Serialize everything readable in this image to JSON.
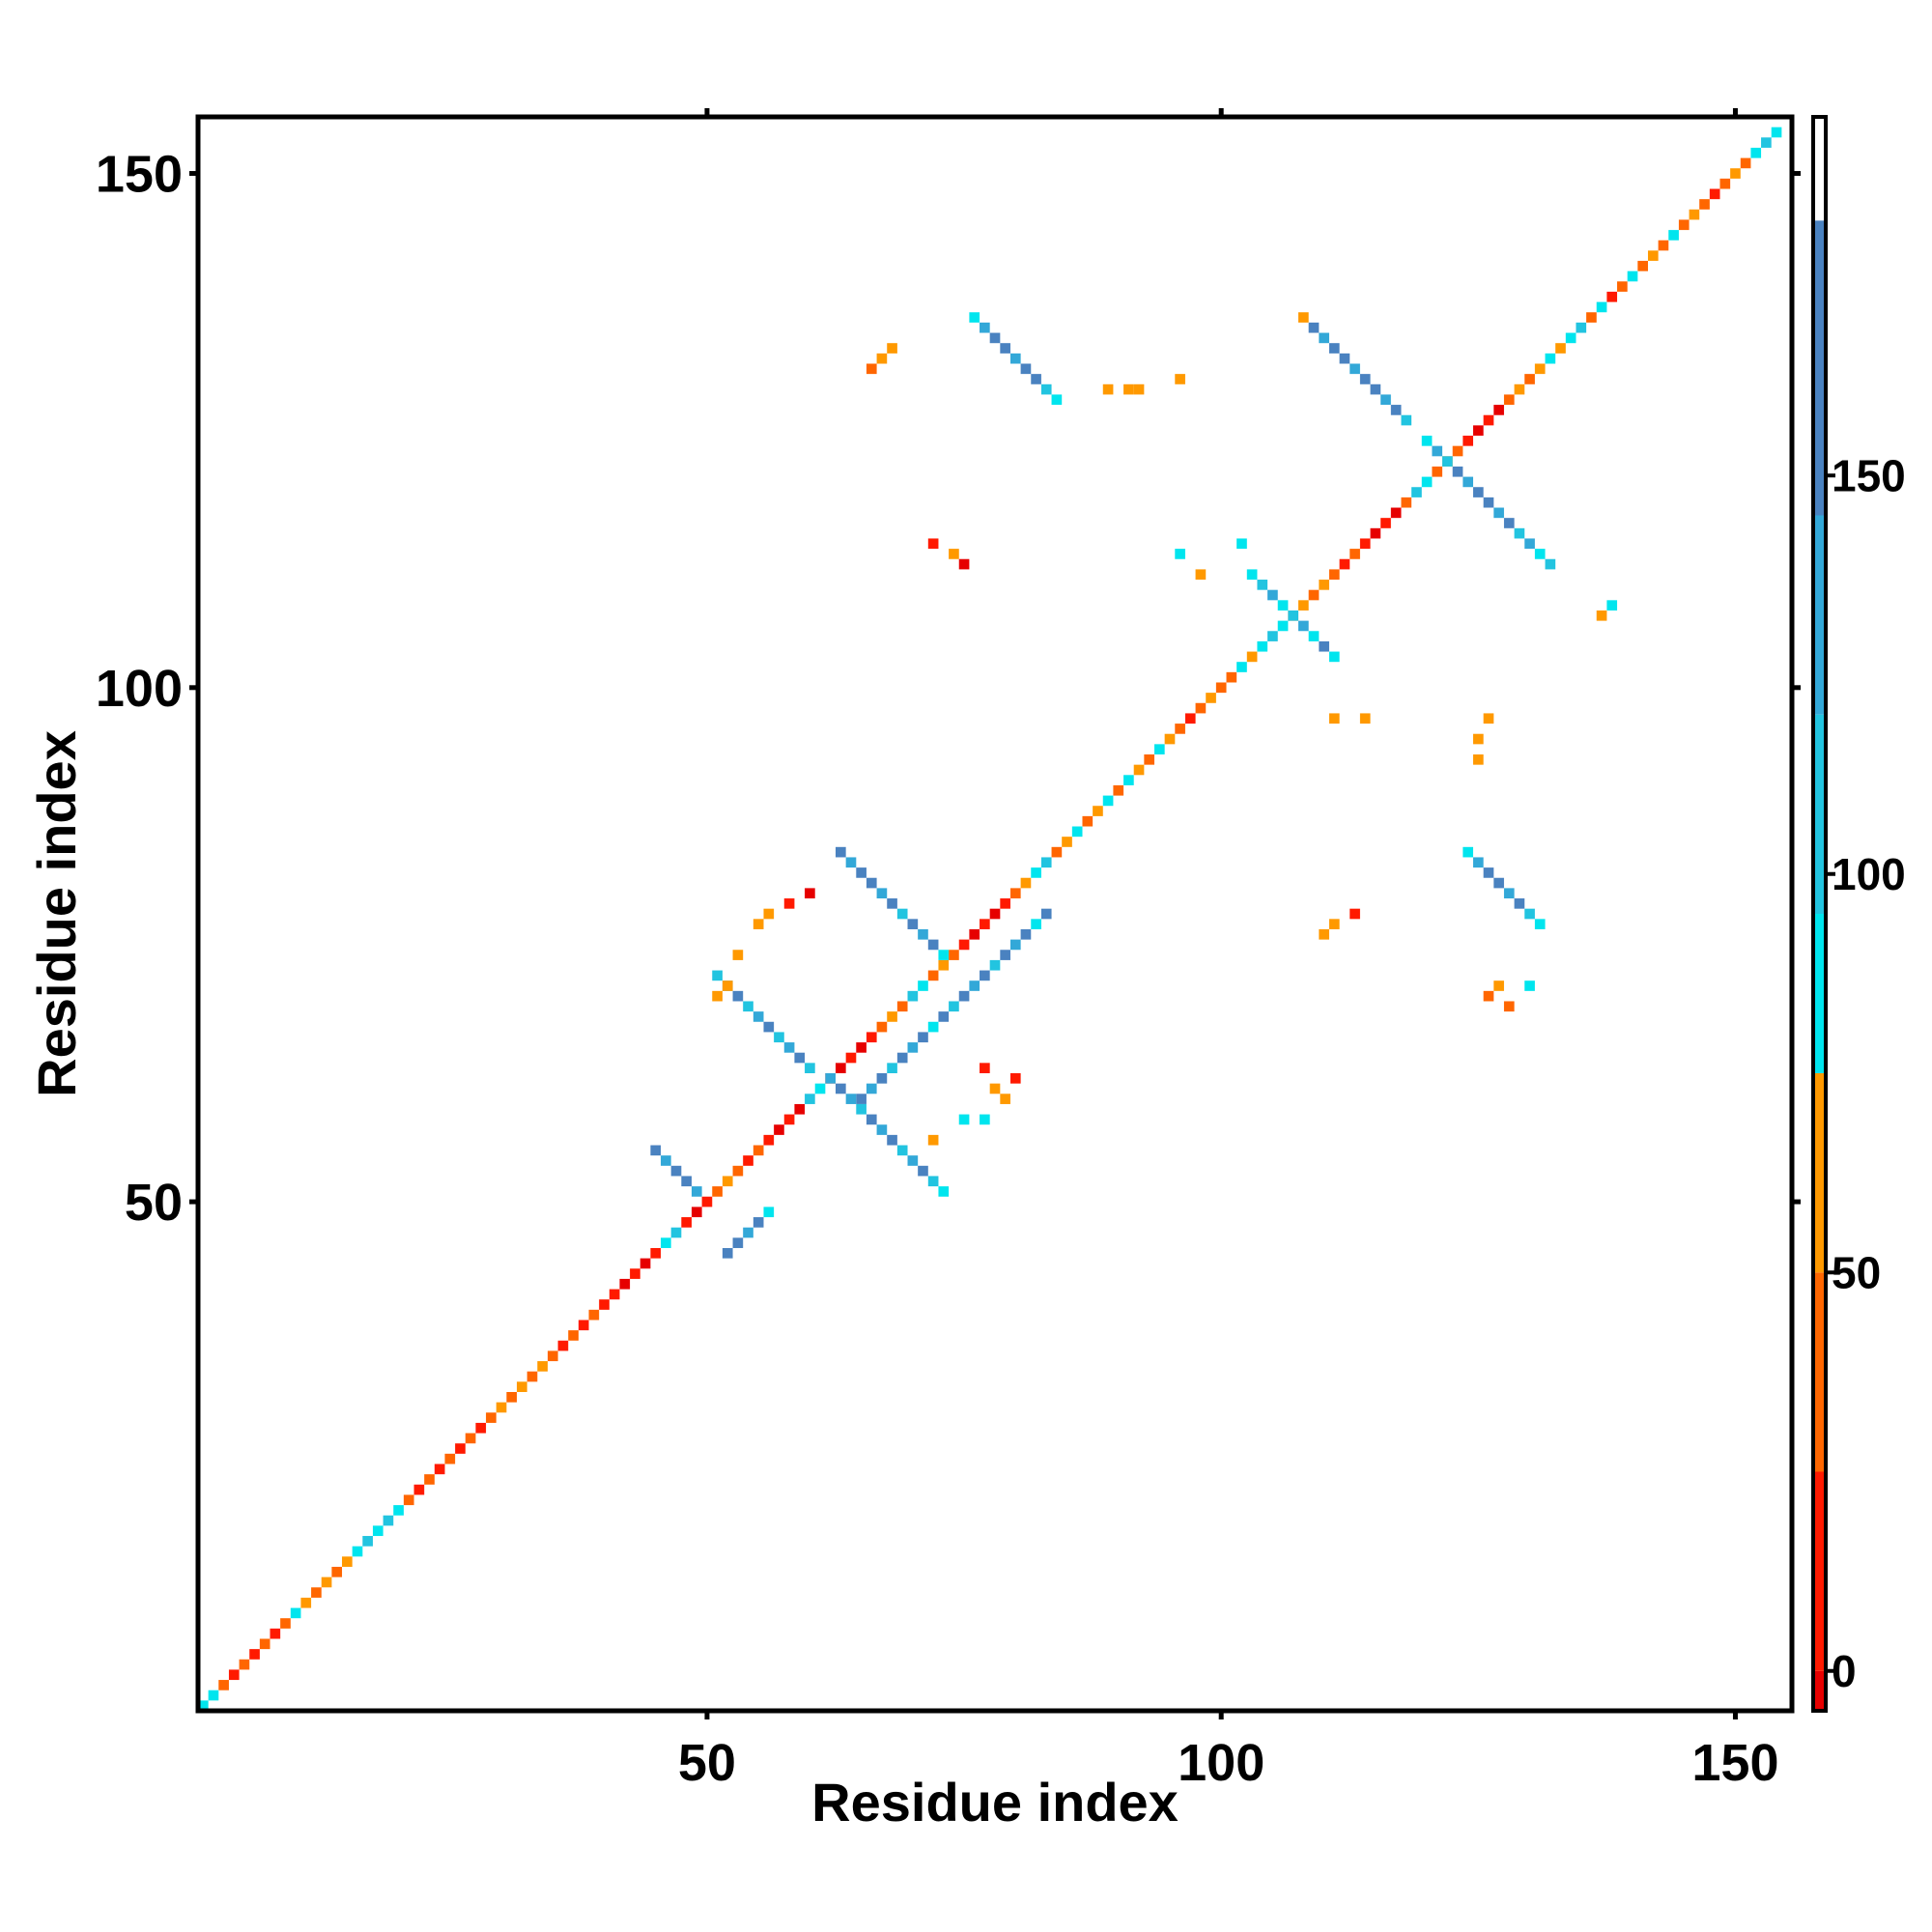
{
  "chart_data": {
    "type": "heatmap",
    "title": "",
    "xlabel": "Residue index",
    "ylabel": "Residue index",
    "xlim": [
      1,
      155
    ],
    "ylim": [
      1,
      155
    ],
    "x_ticks": [
      50,
      100,
      150
    ],
    "y_ticks": [
      50,
      100,
      150
    ],
    "colorbar": {
      "ticks": [
        0,
        50,
        100,
        150
      ],
      "range": [
        -5,
        195
      ],
      "bands": [
        {
          "from": -5,
          "to": 0,
          "color": "#e60000"
        },
        {
          "from": 0,
          "to": 25,
          "color": "#ff1a00"
        },
        {
          "from": 25,
          "to": 50,
          "color": "#ff6600"
        },
        {
          "from": 50,
          "to": 75,
          "color": "#ff9900"
        },
        {
          "from": 75,
          "to": 95,
          "color": "#00e5ee"
        },
        {
          "from": 95,
          "to": 120,
          "color": "#22c4e0"
        },
        {
          "from": 120,
          "to": 145,
          "color": "#33a8d8"
        },
        {
          "from": 145,
          "to": 182,
          "color": "#4a82c0"
        },
        {
          "from": 182,
          "to": 195,
          "color": "#ffffff"
        }
      ]
    },
    "cells": [
      [
        1,
        1,
        "#00e5ee"
      ],
      [
        2,
        2,
        "#00e5ee"
      ],
      [
        3,
        3,
        "#ff6600"
      ],
      [
        4,
        4,
        "#ff1a00"
      ],
      [
        5,
        5,
        "#ff6600"
      ],
      [
        6,
        6,
        "#ff1a00"
      ],
      [
        7,
        7,
        "#ff6600"
      ],
      [
        8,
        8,
        "#ff1a00"
      ],
      [
        9,
        9,
        "#ff6600"
      ],
      [
        10,
        10,
        "#00e5ee"
      ],
      [
        11,
        11,
        "#ff9900"
      ],
      [
        12,
        12,
        "#ff6600"
      ],
      [
        13,
        13,
        "#ff9900"
      ],
      [
        14,
        14,
        "#ff6600"
      ],
      [
        15,
        15,
        "#ff9900"
      ],
      [
        16,
        16,
        "#00e5ee"
      ],
      [
        17,
        17,
        "#22c4e0"
      ],
      [
        18,
        18,
        "#00e5ee"
      ],
      [
        19,
        19,
        "#22c4e0"
      ],
      [
        20,
        20,
        "#00e5ee"
      ],
      [
        21,
        21,
        "#ff6600"
      ],
      [
        22,
        22,
        "#ff1a00"
      ],
      [
        23,
        23,
        "#ff6600"
      ],
      [
        24,
        24,
        "#ff1a00"
      ],
      [
        25,
        25,
        "#ff6600"
      ],
      [
        26,
        26,
        "#ff1a00"
      ],
      [
        27,
        27,
        "#ff6600"
      ],
      [
        28,
        28,
        "#ff1a00"
      ],
      [
        29,
        29,
        "#ff6600"
      ],
      [
        30,
        30,
        "#ff9900"
      ],
      [
        31,
        31,
        "#ff6600"
      ],
      [
        32,
        32,
        "#ff9900"
      ],
      [
        33,
        33,
        "#ff6600"
      ],
      [
        34,
        34,
        "#ff9900"
      ],
      [
        35,
        35,
        "#ff6600"
      ],
      [
        36,
        36,
        "#ff1a00"
      ],
      [
        37,
        37,
        "#ff6600"
      ],
      [
        38,
        38,
        "#ff1a00"
      ],
      [
        39,
        39,
        "#ff6600"
      ],
      [
        40,
        40,
        "#ff1a00"
      ],
      [
        41,
        41,
        "#ff1a00"
      ],
      [
        42,
        42,
        "#e60000"
      ],
      [
        43,
        43,
        "#ff1a00"
      ],
      [
        44,
        44,
        "#e60000"
      ],
      [
        45,
        45,
        "#ff1a00"
      ],
      [
        46,
        46,
        "#00e5ee"
      ],
      [
        47,
        47,
        "#22c4e0"
      ],
      [
        48,
        48,
        "#ff1a00"
      ],
      [
        49,
        49,
        "#e60000"
      ],
      [
        50,
        50,
        "#ff1a00"
      ],
      [
        51,
        51,
        "#ff6600"
      ],
      [
        52,
        52,
        "#ff9900"
      ],
      [
        53,
        53,
        "#ff6600"
      ],
      [
        54,
        54,
        "#ff1a00"
      ],
      [
        55,
        55,
        "#ff6600"
      ],
      [
        56,
        56,
        "#ff1a00"
      ],
      [
        57,
        57,
        "#e60000"
      ],
      [
        58,
        58,
        "#ff1a00"
      ],
      [
        59,
        59,
        "#e60000"
      ],
      [
        60,
        60,
        "#22c4e0"
      ],
      [
        61,
        61,
        "#00e5ee"
      ],
      [
        62,
        62,
        "#ff1a00"
      ],
      [
        63,
        63,
        "#e60000"
      ],
      [
        64,
        64,
        "#ff1a00"
      ],
      [
        65,
        65,
        "#e60000"
      ],
      [
        66,
        66,
        "#ff1a00"
      ],
      [
        67,
        67,
        "#ff6600"
      ],
      [
        68,
        68,
        "#ff9900"
      ],
      [
        69,
        69,
        "#ff6600"
      ],
      [
        70,
        70,
        "#22c4e0"
      ],
      [
        71,
        71,
        "#00e5ee"
      ],
      [
        72,
        72,
        "#ff6600"
      ],
      [
        73,
        73,
        "#ff9900"
      ],
      [
        74,
        74,
        "#ff6600"
      ],
      [
        75,
        75,
        "#ff1a00"
      ],
      [
        76,
        76,
        "#e60000"
      ],
      [
        77,
        77,
        "#ff1a00"
      ],
      [
        78,
        78,
        "#e60000"
      ],
      [
        79,
        79,
        "#ff1a00"
      ],
      [
        80,
        80,
        "#ff6600"
      ],
      [
        81,
        81,
        "#ff9900"
      ],
      [
        82,
        82,
        "#00e5ee"
      ],
      [
        83,
        83,
        "#22c4e0"
      ],
      [
        84,
        84,
        "#ff6600"
      ],
      [
        85,
        85,
        "#ff9900"
      ],
      [
        86,
        86,
        "#00e5ee"
      ],
      [
        87,
        87,
        "#ff6600"
      ],
      [
        88,
        88,
        "#ff9900"
      ],
      [
        89,
        89,
        "#00e5ee"
      ],
      [
        90,
        90,
        "#ff6600"
      ],
      [
        91,
        91,
        "#00e5ee"
      ],
      [
        92,
        92,
        "#ff9900"
      ],
      [
        93,
        93,
        "#ff6600"
      ],
      [
        94,
        94,
        "#00e5ee"
      ],
      [
        95,
        95,
        "#ff9900"
      ],
      [
        96,
        96,
        "#ff6600"
      ],
      [
        97,
        97,
        "#ff1a00"
      ],
      [
        98,
        98,
        "#ff6600"
      ],
      [
        99,
        99,
        "#ff9900"
      ],
      [
        100,
        100,
        "#ff6600"
      ],
      [
        101,
        101,
        "#ff6600"
      ],
      [
        102,
        102,
        "#00e5ee"
      ],
      [
        103,
        103,
        "#ff9900"
      ],
      [
        104,
        104,
        "#00e5ee"
      ],
      [
        105,
        105,
        "#22c4e0"
      ],
      [
        106,
        106,
        "#00e5ee"
      ],
      [
        107,
        107,
        "#ff6600"
      ],
      [
        108,
        108,
        "#ff9900"
      ],
      [
        109,
        109,
        "#ff6600"
      ],
      [
        110,
        110,
        "#ff9900"
      ],
      [
        111,
        111,
        "#ff6600"
      ],
      [
        112,
        112,
        "#ff1a00"
      ],
      [
        113,
        113,
        "#ff6600"
      ],
      [
        114,
        114,
        "#ff1a00"
      ],
      [
        115,
        115,
        "#e60000"
      ],
      [
        116,
        116,
        "#ff1a00"
      ],
      [
        117,
        117,
        "#e60000"
      ],
      [
        118,
        118,
        "#ff6600"
      ],
      [
        119,
        119,
        "#22c4e0"
      ],
      [
        120,
        120,
        "#00e5ee"
      ],
      [
        121,
        121,
        "#ff6600"
      ],
      [
        122,
        122,
        "#ff9900"
      ],
      [
        123,
        123,
        "#ff6600"
      ],
      [
        124,
        124,
        "#ff1a00"
      ],
      [
        125,
        125,
        "#e60000"
      ],
      [
        126,
        126,
        "#ff1a00"
      ],
      [
        127,
        127,
        "#e60000"
      ],
      [
        128,
        128,
        "#ff6600"
      ],
      [
        129,
        129,
        "#ff9900"
      ],
      [
        130,
        130,
        "#ff6600"
      ],
      [
        131,
        131,
        "#ff9900"
      ],
      [
        132,
        132,
        "#00e5ee"
      ],
      [
        133,
        133,
        "#ff9900"
      ],
      [
        134,
        134,
        "#00e5ee"
      ],
      [
        135,
        135,
        "#22c4e0"
      ],
      [
        136,
        136,
        "#ff6600"
      ],
      [
        137,
        137,
        "#00e5ee"
      ],
      [
        138,
        138,
        "#ff1a00"
      ],
      [
        139,
        139,
        "#ff6600"
      ],
      [
        140,
        140,
        "#00e5ee"
      ],
      [
        141,
        141,
        "#ff6600"
      ],
      [
        142,
        142,
        "#ff9900"
      ],
      [
        143,
        143,
        "#ff6600"
      ],
      [
        144,
        144,
        "#00e5ee"
      ],
      [
        145,
        145,
        "#ff6600"
      ],
      [
        146,
        146,
        "#ff9900"
      ],
      [
        147,
        147,
        "#ff6600"
      ],
      [
        148,
        148,
        "#ff1a00"
      ],
      [
        149,
        149,
        "#ff6600"
      ],
      [
        150,
        150,
        "#ff9900"
      ],
      [
        151,
        151,
        "#ff6600"
      ],
      [
        152,
        152,
        "#00e5ee"
      ],
      [
        153,
        153,
        "#22c4e0"
      ],
      [
        154,
        154,
        "#00e5ee"
      ],
      [
        52,
        45,
        "#4a82c0"
      ],
      [
        53,
        46,
        "#4a82c0"
      ],
      [
        54,
        47,
        "#33a8d8"
      ],
      [
        55,
        48,
        "#4a82c0"
      ],
      [
        56,
        49,
        "#00e5ee"
      ],
      [
        49,
        51,
        "#33a8d8"
      ],
      [
        48,
        52,
        "#4a82c0"
      ],
      [
        47,
        53,
        "#4a82c0"
      ],
      [
        46,
        54,
        "#33a8d8"
      ],
      [
        45,
        55,
        "#4a82c0"
      ],
      [
        65,
        60,
        "#4a82c0"
      ],
      [
        66,
        61,
        "#33a8d8"
      ],
      [
        67,
        62,
        "#4a82c0"
      ],
      [
        68,
        63,
        "#22c4e0"
      ],
      [
        69,
        64,
        "#4a82c0"
      ],
      [
        70,
        65,
        "#33a8d8"
      ],
      [
        71,
        66,
        "#4a82c0"
      ],
      [
        72,
        67,
        "#00e5ee"
      ],
      [
        73,
        68,
        "#4a82c0"
      ],
      [
        74,
        69,
        "#22c4e0"
      ],
      [
        75,
        70,
        "#4a82c0"
      ],
      [
        76,
        71,
        "#33a8d8"
      ],
      [
        77,
        72,
        "#4a82c0"
      ],
      [
        78,
        73,
        "#22c4e0"
      ],
      [
        79,
        74,
        "#4a82c0"
      ],
      [
        80,
        75,
        "#33a8d8"
      ],
      [
        81,
        76,
        "#4a82c0"
      ],
      [
        82,
        77,
        "#00e5ee"
      ],
      [
        83,
        78,
        "#4a82c0"
      ],
      [
        51,
        72,
        "#22c4e0"
      ],
      [
        52,
        71,
        "#33a8d8"
      ],
      [
        53,
        70,
        "#4a82c0"
      ],
      [
        54,
        69,
        "#22c4e0"
      ],
      [
        55,
        68,
        "#33a8d8"
      ],
      [
        56,
        67,
        "#4a82c0"
      ],
      [
        57,
        66,
        "#22c4e0"
      ],
      [
        58,
        65,
        "#33a8d8"
      ],
      [
        59,
        64,
        "#4a82c0"
      ],
      [
        60,
        63,
        "#22c4e0"
      ],
      [
        62,
        62,
        "#33a8d8"
      ],
      [
        63,
        61,
        "#4a82c0"
      ],
      [
        64,
        60,
        "#33a8d8"
      ],
      [
        65,
        59,
        "#22c4e0"
      ],
      [
        66,
        58,
        "#4a82c0"
      ],
      [
        67,
        57,
        "#33a8d8"
      ],
      [
        68,
        56,
        "#4a82c0"
      ],
      [
        69,
        55,
        "#22c4e0"
      ],
      [
        70,
        54,
        "#33a8d8"
      ],
      [
        71,
        53,
        "#4a82c0"
      ],
      [
        72,
        52,
        "#22c4e0"
      ],
      [
        73,
        51,
        "#00e5ee"
      ],
      [
        63,
        84,
        "#4a82c0"
      ],
      [
        64,
        83,
        "#33a8d8"
      ],
      [
        65,
        82,
        "#4a82c0"
      ],
      [
        66,
        81,
        "#4a82c0"
      ],
      [
        67,
        80,
        "#33a8d8"
      ],
      [
        68,
        79,
        "#4a82c0"
      ],
      [
        69,
        78,
        "#22c4e0"
      ],
      [
        70,
        77,
        "#4a82c0"
      ],
      [
        71,
        76,
        "#33a8d8"
      ],
      [
        72,
        75,
        "#4a82c0"
      ],
      [
        73,
        74,
        "#00e5ee"
      ],
      [
        76,
        136,
        "#00e5ee"
      ],
      [
        77,
        135,
        "#33a8d8"
      ],
      [
        78,
        134,
        "#4a82c0"
      ],
      [
        79,
        133,
        "#4a82c0"
      ],
      [
        80,
        132,
        "#33a8d8"
      ],
      [
        81,
        131,
        "#4a82c0"
      ],
      [
        82,
        130,
        "#4a82c0"
      ],
      [
        83,
        129,
        "#22c4e0"
      ],
      [
        84,
        128,
        "#00e5ee"
      ],
      [
        109,
        135,
        "#4a82c0"
      ],
      [
        110,
        134,
        "#33a8d8"
      ],
      [
        111,
        133,
        "#4a82c0"
      ],
      [
        112,
        132,
        "#4a82c0"
      ],
      [
        113,
        131,
        "#33a8d8"
      ],
      [
        114,
        130,
        "#4a82c0"
      ],
      [
        115,
        129,
        "#4a82c0"
      ],
      [
        116,
        128,
        "#33a8d8"
      ],
      [
        117,
        127,
        "#4a82c0"
      ],
      [
        118,
        126,
        "#22c4e0"
      ],
      [
        120,
        124,
        "#00e5ee"
      ],
      [
        121,
        123,
        "#33a8d8"
      ],
      [
        122,
        122,
        "#22c4e0"
      ],
      [
        123,
        121,
        "#4a82c0"
      ],
      [
        124,
        120,
        "#33a8d8"
      ],
      [
        125,
        119,
        "#4a82c0"
      ],
      [
        126,
        118,
        "#4a82c0"
      ],
      [
        127,
        117,
        "#33a8d8"
      ],
      [
        128,
        116,
        "#4a82c0"
      ],
      [
        129,
        115,
        "#22c4e0"
      ],
      [
        130,
        114,
        "#33a8d8"
      ],
      [
        131,
        113,
        "#00e5ee"
      ],
      [
        132,
        112,
        "#22c4e0"
      ],
      [
        103,
        111,
        "#00e5ee"
      ],
      [
        104,
        110,
        "#22c4e0"
      ],
      [
        105,
        109,
        "#33a8d8"
      ],
      [
        106,
        108,
        "#00e5ee"
      ],
      [
        107,
        107,
        "#22c4e0"
      ],
      [
        108,
        106,
        "#33a8d8"
      ],
      [
        109,
        105,
        "#00e5ee"
      ],
      [
        110,
        104,
        "#4a82c0"
      ],
      [
        111,
        103,
        "#00e5ee"
      ],
      [
        124,
        84,
        "#00e5ee"
      ],
      [
        125,
        83,
        "#33a8d8"
      ],
      [
        126,
        82,
        "#4a82c0"
      ],
      [
        127,
        81,
        "#4a82c0"
      ],
      [
        128,
        80,
        "#33a8d8"
      ],
      [
        129,
        79,
        "#4a82c0"
      ],
      [
        130,
        78,
        "#22c4e0"
      ],
      [
        131,
        77,
        "#00e5ee"
      ],
      [
        66,
        131,
        "#ff6600"
      ],
      [
        67,
        132,
        "#ff9900"
      ],
      [
        68,
        133,
        "#ff9900"
      ],
      [
        72,
        114,
        "#ff1a00"
      ],
      [
        74,
        113,
        "#ff9900"
      ],
      [
        75,
        112,
        "#e60000"
      ],
      [
        89,
        129,
        "#ff9900"
      ],
      [
        91,
        129,
        "#ff9900"
      ],
      [
        92,
        129,
        "#ff9900"
      ],
      [
        96,
        130,
        "#ff9900"
      ],
      [
        96,
        113,
        "#00e5ee"
      ],
      [
        102,
        114,
        "#00e5ee"
      ],
      [
        98,
        111,
        "#ff9900"
      ],
      [
        137,
        107,
        "#ff9900"
      ],
      [
        138,
        108,
        "#00e5ee"
      ],
      [
        111,
        97,
        "#ff9900"
      ],
      [
        114,
        97,
        "#ff9900"
      ],
      [
        126,
        97,
        "#ff9900"
      ],
      [
        125,
        95,
        "#ff9900"
      ],
      [
        125,
        93,
        "#ff9900"
      ],
      [
        113,
        78,
        "#ff1a00"
      ],
      [
        111,
        77,
        "#ff9900"
      ],
      [
        110,
        76,
        "#ff9900"
      ],
      [
        126,
        70,
        "#ff6600"
      ],
      [
        127,
        71,
        "#ff9900"
      ],
      [
        128,
        69,
        "#ff6600"
      ],
      [
        130,
        71,
        "#00e5ee"
      ],
      [
        55,
        77,
        "#ff9900"
      ],
      [
        56,
        78,
        "#ff9900"
      ],
      [
        58,
        79,
        "#ff1a00"
      ],
      [
        60,
        80,
        "#e60000"
      ],
      [
        53,
        74,
        "#ff9900"
      ],
      [
        51,
        70,
        "#ff9900"
      ],
      [
        52,
        71,
        "#ff9900"
      ],
      [
        77,
        63,
        "#ff1a00"
      ],
      [
        78,
        61,
        "#ff9900"
      ],
      [
        77,
        58,
        "#00e5ee"
      ],
      [
        79,
        60,
        "#ff9900"
      ],
      [
        80,
        62,
        "#ff1a00"
      ],
      [
        75,
        58,
        "#00e5ee"
      ],
      [
        72,
        56,
        "#ff9900"
      ],
      [
        108,
        136,
        "#ff9900"
      ]
    ]
  }
}
